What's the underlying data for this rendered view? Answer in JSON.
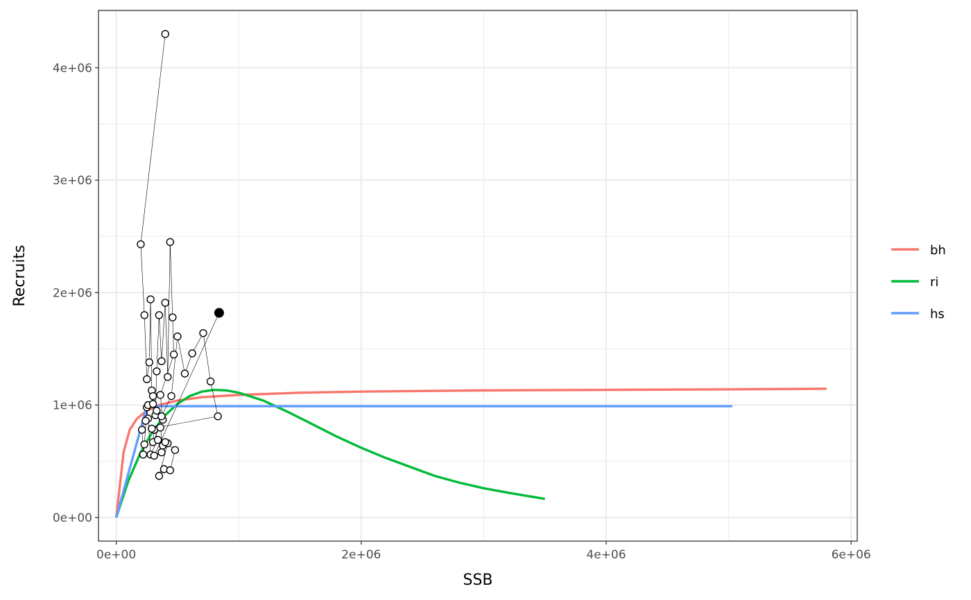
{
  "chart_data": {
    "type": "line",
    "xlabel": "SSB",
    "ylabel": "Recruits",
    "xlim": [
      -145000,
      6050000
    ],
    "ylim": [
      -210000,
      4510000
    ],
    "grid": true,
    "legend_position": "right",
    "x_ticks": [
      {
        "value": 0,
        "label": "0e+00"
      },
      {
        "value": 2000000,
        "label": "2e+06"
      },
      {
        "value": 4000000,
        "label": "4e+06"
      },
      {
        "value": 6000000,
        "label": "6e+06"
      }
    ],
    "y_ticks": [
      {
        "value": 0,
        "label": "0e+00"
      },
      {
        "value": 1000000,
        "label": "1e+06"
      },
      {
        "value": 2000000,
        "label": "2e+06"
      },
      {
        "value": 3000000,
        "label": "3e+06"
      },
      {
        "value": 4000000,
        "label": "4e+06"
      }
    ],
    "series": [
      {
        "name": "bh",
        "color": "#F8766D",
        "x": [
          0,
          60000,
          110000,
          170000,
          250000,
          350000,
          500000,
          700000,
          1000000,
          1500000,
          2000000,
          3000000,
          4000000,
          5000000,
          5800000
        ],
        "y": [
          0,
          580000,
          780000,
          880000,
          950000,
          1000000,
          1040000,
          1070000,
          1090000,
          1110000,
          1120000,
          1130000,
          1135000,
          1140000,
          1145000
        ]
      },
      {
        "name": "ri",
        "color": "#00BA38",
        "x": [
          0,
          100000,
          200000,
          300000,
          400000,
          500000,
          600000,
          700000,
          800000,
          900000,
          1000000,
          1200000,
          1400000,
          1600000,
          1800000,
          2000000,
          2200000,
          2400000,
          2600000,
          2800000,
          3000000,
          3200000,
          3500000
        ],
        "y": [
          0,
          330000,
          580000,
          770000,
          910000,
          1010000,
          1080000,
          1120000,
          1135000,
          1130000,
          1110000,
          1040000,
          940000,
          830000,
          720000,
          620000,
          530000,
          450000,
          370000,
          310000,
          260000,
          220000,
          165000
        ]
      },
      {
        "name": "hs",
        "color": "#619CFF",
        "x": [
          0,
          250000,
          5030000
        ],
        "y": [
          0,
          990000,
          990000
        ]
      }
    ],
    "observations": {
      "x": [
        400000,
        200000,
        230000,
        250000,
        270000,
        280000,
        290000,
        300000,
        320000,
        330000,
        350000,
        370000,
        400000,
        420000,
        440000,
        460000,
        470000,
        360000,
        380000,
        300000,
        310000,
        340000,
        280000,
        260000,
        250000,
        230000,
        220000,
        210000,
        240000,
        260000,
        300000,
        330000,
        370000,
        450000,
        500000,
        560000,
        620000,
        710000,
        770000,
        830000,
        290000,
        360000,
        380000,
        420000,
        350000,
        390000,
        440000,
        480000,
        400000,
        370000,
        310000
      ],
      "y": [
        4300000,
        2430000,
        1800000,
        1230000,
        1380000,
        1940000,
        1130000,
        1080000,
        910000,
        1300000,
        1800000,
        1390000,
        1910000,
        1250000,
        2450000,
        1780000,
        1450000,
        1090000,
        870000,
        670000,
        780000,
        690000,
        560000,
        880000,
        980000,
        650000,
        560000,
        780000,
        860000,
        1000000,
        1010000,
        950000,
        900000,
        1080000,
        1610000,
        1280000,
        1460000,
        1640000,
        1210000,
        900000,
        790000,
        800000,
        640000,
        660000,
        370000,
        430000,
        420000,
        600000,
        670000,
        580000,
        550000
      ],
      "last_point": {
        "x": 840000,
        "y": 1820000
      }
    }
  }
}
